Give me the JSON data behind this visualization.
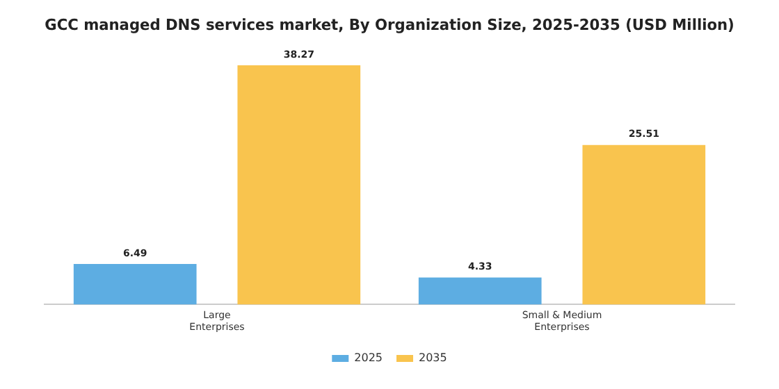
{
  "chart_data": {
    "type": "bar",
    "title": "GCC managed DNS services market, By Organization Size, 2025-2035 (USD Million)",
    "categories": [
      "Large Enterprises",
      "Small & Medium Enterprises"
    ],
    "series": [
      {
        "name": "2025",
        "color": "#5dade2",
        "values": [
          6.49,
          4.33
        ]
      },
      {
        "name": "2035",
        "color": "#f9c44e",
        "values": [
          38.27,
          25.51
        ]
      }
    ],
    "data_labels": true,
    "legend": "bottom",
    "grid": false,
    "tick_labels": "x"
  }
}
